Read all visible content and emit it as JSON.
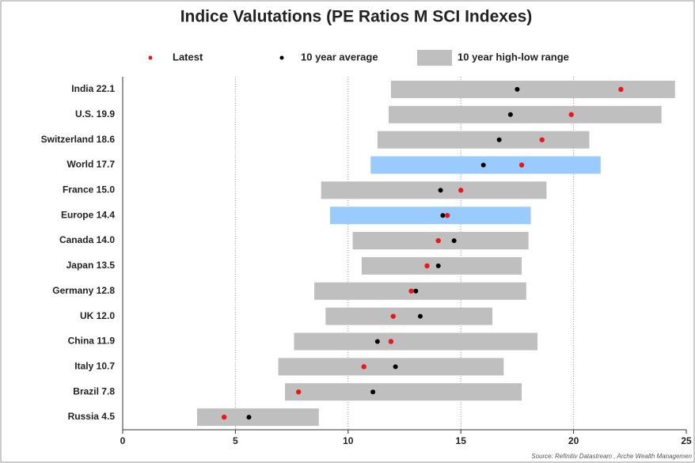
{
  "chart_data": {
    "type": "dot",
    "title": "Indice Valutations (PE Ratios M SCI Indexes)",
    "source": "Source: Refinitiv Datastream , Arche Wealth Managemen",
    "categories": [
      "India 22.1",
      "U.S. 19.9",
      "Switzerland 18.6",
      "World 17.7",
      "France 15.0",
      "Europe 14.4",
      "Canada 14.0",
      "Japan 13.5",
      "Germany 12.8",
      "UK 12.0",
      "China 11.9",
      "Italy 10.7",
      "Brazil 7.8",
      "Russia 4.5"
    ],
    "series": [
      {
        "name": "Latest",
        "color": "#e8191c",
        "values": [
          22.1,
          19.9,
          18.6,
          17.7,
          15.0,
          14.4,
          14.0,
          13.5,
          12.8,
          12.0,
          11.9,
          10.7,
          7.8,
          4.5
        ]
      },
      {
        "name": "10 year average",
        "color": "#000000",
        "values": [
          17.5,
          17.2,
          16.7,
          16.0,
          14.1,
          14.2,
          14.7,
          14.0,
          13.0,
          13.2,
          11.3,
          12.1,
          11.1,
          5.6
        ]
      },
      {
        "name": "10 year high-low range",
        "color": "#bfbfbf",
        "low": [
          11.9,
          11.8,
          11.3,
          11.0,
          8.8,
          9.2,
          10.2,
          10.6,
          8.5,
          9.0,
          7.6,
          6.9,
          7.2,
          3.3
        ],
        "high": [
          24.5,
          23.9,
          20.7,
          21.2,
          18.8,
          18.1,
          18.0,
          17.7,
          17.9,
          16.4,
          18.4,
          16.9,
          17.7,
          8.7
        ],
        "colors": [
          "#bfbfbf",
          "#bfbfbf",
          "#bfbfbf",
          "#99cbff",
          "#bfbfbf",
          "#99cbff",
          "#bfbfbf",
          "#bfbfbf",
          "#bfbfbf",
          "#bfbfbf",
          "#bfbfbf",
          "#bfbfbf",
          "#bfbfbf",
          "#bfbfbf"
        ]
      }
    ],
    "xlim": [
      0,
      25
    ],
    "xticks": [
      0,
      5,
      10,
      15,
      20,
      25
    ],
    "grid": true
  }
}
